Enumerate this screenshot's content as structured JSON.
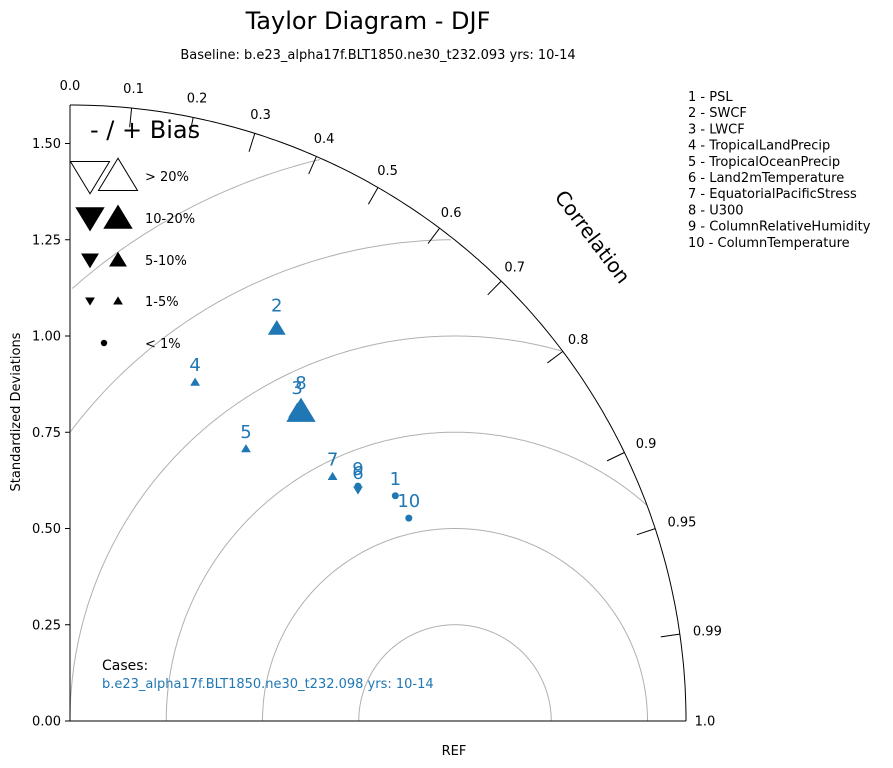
{
  "chart_data": {
    "type": "taylor",
    "title": "Taylor Diagram - DJF",
    "subtitle": "Baseline: b.e23_alpha17f.BLT1850.ne30_t232.093  yrs: 10-14",
    "ylabel": "Standardized Deviations",
    "xlabel": "REF",
    "correlation_label": "Correlation",
    "std_range": [
      0,
      1.6
    ],
    "std_ticks": [
      "0.00",
      "0.25",
      "0.50",
      "0.75",
      "1.00",
      "1.25",
      "1.50"
    ],
    "std_tick_values": [
      0,
      0.25,
      0.5,
      0.75,
      1.0,
      1.25,
      1.5
    ],
    "correlation_ticks": [
      {
        "value": 0.0,
        "label": "0.0"
      },
      {
        "value": 0.1,
        "label": "0.1"
      },
      {
        "value": 0.2,
        "label": "0.2"
      },
      {
        "value": 0.3,
        "label": "0.3"
      },
      {
        "value": 0.4,
        "label": "0.4"
      },
      {
        "value": 0.5,
        "label": "0.5"
      },
      {
        "value": 0.6,
        "label": "0.6"
      },
      {
        "value": 0.7,
        "label": "0.7"
      },
      {
        "value": 0.8,
        "label": "0.8"
      },
      {
        "value": 0.9,
        "label": "0.9"
      },
      {
        "value": 0.95,
        "label": "0.95"
      },
      {
        "value": 0.99,
        "label": "0.99"
      },
      {
        "value": 1.0,
        "label": "1.0"
      }
    ],
    "rmse_circles": [
      0.25,
      0.5,
      0.75,
      1.0,
      1.25,
      1.5
    ],
    "bias_legend": {
      "title": "- / + Bias",
      "entries": [
        {
          "label": "> 20%",
          "size": 17,
          "filled": false
        },
        {
          "label": "10-20%",
          "size": 12,
          "filled": true
        },
        {
          "label": "5-10%",
          "size": 7,
          "filled": true
        },
        {
          "label": "1-5%",
          "size": 3.5,
          "filled": true
        },
        {
          "label": "< 1%",
          "size": 3.5,
          "filled": true,
          "dot": true
        }
      ]
    },
    "variables": [
      "1 - PSL",
      "2 - SWCF",
      "3 - LWCF",
      "4 - TropicalLandPrecip",
      "5 - TropicalOceanPrecip",
      "6 - Land2mTemperature",
      "7 - EquatorialPacificStress",
      "8 - U300",
      "9 - ColumnRelativeHumidity",
      "10 - ColumnTemperature"
    ],
    "cases_label": "Cases:",
    "case_name": "b.e23_alpha17f.BLT1850.ne30_t232.098  yrs: 10-14",
    "series_color": "#1f77b4",
    "points": [
      {
        "id": "1",
        "x": 0.845,
        "y": 0.585,
        "marker": "dot",
        "size": 3.5
      },
      {
        "id": "2",
        "x": 0.537,
        "y": 1.02,
        "marker": "up",
        "size": 7
      },
      {
        "id": "3",
        "x": 0.59,
        "y": 0.805,
        "marker": "up",
        "size": 7
      },
      {
        "id": "4",
        "x": 0.325,
        "y": 0.88,
        "marker": "up",
        "size": 3.5
      },
      {
        "id": "5",
        "x": 0.457,
        "y": 0.707,
        "marker": "up",
        "size": 3.5
      },
      {
        "id": "6",
        "x": 0.748,
        "y": 0.6,
        "marker": "down",
        "size": 3.5
      },
      {
        "id": "7",
        "x": 0.682,
        "y": 0.635,
        "marker": "up",
        "size": 3.5
      },
      {
        "id": "8",
        "x": 0.6,
        "y": 0.805,
        "marker": "up",
        "size": 12
      },
      {
        "id": "9",
        "x": 0.748,
        "y": 0.61,
        "marker": "dot",
        "size": 3.5
      },
      {
        "id": "10",
        "x": 0.88,
        "y": 0.527,
        "marker": "dot",
        "size": 3.5
      }
    ]
  }
}
